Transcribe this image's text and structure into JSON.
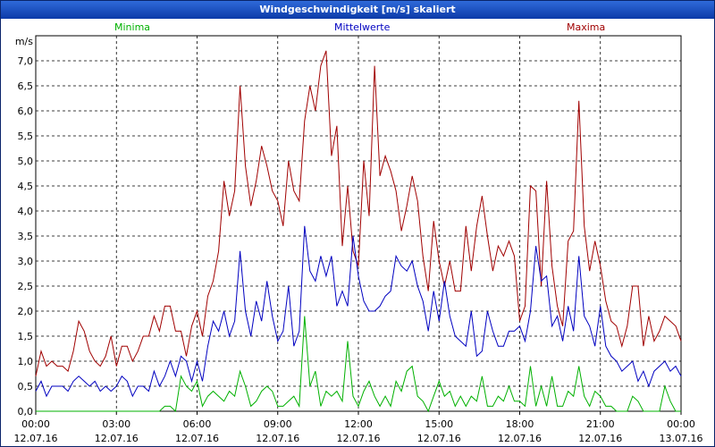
{
  "window": {
    "title": "Windgeschwindigkeit [m/s] skaliert"
  },
  "legend": {
    "min_label": "Minima",
    "mean_label": "Mittelwerte",
    "max_label": "Maxima"
  },
  "chart_data": {
    "type": "line",
    "title": "Windgeschwindigkeit [m/s] skaliert",
    "ylabel": "m/s",
    "ylim": [
      0,
      7.5
    ],
    "yticks": [
      "0,0",
      "0,5",
      "1,0",
      "1,5",
      "2,0",
      "2,5",
      "3,0",
      "3,5",
      "4,0",
      "4,5",
      "5,0",
      "5,5",
      "6,0",
      "6,5",
      "7,0"
    ],
    "xlim_hours": [
      0,
      24
    ],
    "xticks": [
      {
        "time": "00:00",
        "date": "12.07.16"
      },
      {
        "time": "03:00",
        "date": "12.07.16"
      },
      {
        "time": "06:00",
        "date": "12.07.16"
      },
      {
        "time": "09:00",
        "date": "12.07.16"
      },
      {
        "time": "12:00",
        "date": "12.07.16"
      },
      {
        "time": "15:00",
        "date": "12.07.16"
      },
      {
        "time": "18:00",
        "date": "12.07.16"
      },
      {
        "time": "21:00",
        "date": "12.07.16"
      },
      {
        "time": "00:00",
        "date": "13.07.16"
      }
    ],
    "x_hours": [
      0.0,
      0.2,
      0.4,
      0.6,
      0.8,
      1.0,
      1.2,
      1.4,
      1.6,
      1.8,
      2.0,
      2.2,
      2.4,
      2.6,
      2.8,
      3.0,
      3.2,
      3.4,
      3.6,
      3.8,
      4.0,
      4.2,
      4.4,
      4.6,
      4.8,
      5.0,
      5.2,
      5.4,
      5.6,
      5.8,
      6.0,
      6.2,
      6.4,
      6.6,
      6.8,
      7.0,
      7.2,
      7.4,
      7.6,
      7.8,
      8.0,
      8.2,
      8.4,
      8.6,
      8.8,
      9.0,
      9.2,
      9.4,
      9.6,
      9.8,
      10.0,
      10.2,
      10.4,
      10.6,
      10.8,
      11.0,
      11.2,
      11.4,
      11.6,
      11.8,
      12.0,
      12.2,
      12.4,
      12.6,
      12.8,
      13.0,
      13.2,
      13.4,
      13.6,
      13.8,
      14.0,
      14.2,
      14.4,
      14.6,
      14.8,
      15.0,
      15.2,
      15.4,
      15.6,
      15.8,
      16.0,
      16.2,
      16.4,
      16.6,
      16.8,
      17.0,
      17.2,
      17.4,
      17.6,
      17.8,
      18.0,
      18.2,
      18.4,
      18.6,
      18.8,
      19.0,
      19.2,
      19.4,
      19.6,
      19.8,
      20.0,
      20.2,
      20.4,
      20.6,
      20.8,
      21.0,
      21.2,
      21.4,
      21.6,
      21.8,
      22.0,
      22.2,
      22.4,
      22.6,
      22.8,
      23.0,
      23.2,
      23.4,
      23.6,
      23.8,
      24.0
    ],
    "series": [
      {
        "name": "Maxima",
        "color": "#a00000",
        "values": [
          0.7,
          1.2,
          0.9,
          1.0,
          0.9,
          0.9,
          0.8,
          1.2,
          1.8,
          1.6,
          1.2,
          1.0,
          0.9,
          1.1,
          1.5,
          0.9,
          1.3,
          1.3,
          1.0,
          1.2,
          1.5,
          1.5,
          1.9,
          1.6,
          2.1,
          2.1,
          1.6,
          1.6,
          1.1,
          1.7,
          2.0,
          1.5,
          2.3,
          2.6,
          3.2,
          4.6,
          3.9,
          4.4,
          6.5,
          4.9,
          4.1,
          4.6,
          5.3,
          4.9,
          4.4,
          4.2,
          3.7,
          5.0,
          4.4,
          4.2,
          5.8,
          6.5,
          6.0,
          6.9,
          7.2,
          5.1,
          5.7,
          3.3,
          4.5,
          3.2,
          2.9,
          5.0,
          3.9,
          6.9,
          4.7,
          5.1,
          4.8,
          4.4,
          3.6,
          4.1,
          4.7,
          4.2,
          3.1,
          2.4,
          3.8,
          3.0,
          2.5,
          3.0,
          2.4,
          2.4,
          3.7,
          2.8,
          3.7,
          4.3,
          3.5,
          2.8,
          3.3,
          3.1,
          3.4,
          3.1,
          1.8,
          2.1,
          4.5,
          4.4,
          2.5,
          4.6,
          2.9,
          2.1,
          1.7,
          3.4,
          3.6,
          6.2,
          3.7,
          2.8,
          3.4,
          2.9,
          2.2,
          1.8,
          1.7,
          1.3,
          1.7,
          2.5,
          2.5,
          1.3,
          1.9,
          1.4,
          1.6,
          1.9,
          1.8,
          1.7,
          1.4
        ]
      },
      {
        "name": "Mittelwerte",
        "color": "#0000c0",
        "values": [
          0.4,
          0.6,
          0.3,
          0.5,
          0.5,
          0.5,
          0.4,
          0.6,
          0.7,
          0.6,
          0.5,
          0.6,
          0.4,
          0.5,
          0.4,
          0.5,
          0.7,
          0.6,
          0.3,
          0.5,
          0.5,
          0.4,
          0.8,
          0.5,
          0.7,
          1.0,
          0.7,
          1.1,
          1.0,
          0.6,
          1.0,
          0.6,
          1.3,
          1.8,
          1.6,
          2.0,
          1.5,
          1.8,
          3.2,
          2.0,
          1.5,
          2.2,
          1.8,
          2.6,
          1.9,
          1.4,
          1.6,
          2.5,
          1.3,
          1.6,
          3.7,
          2.8,
          2.6,
          3.1,
          2.7,
          3.1,
          2.1,
          2.4,
          2.1,
          3.5,
          2.7,
          2.2,
          2.0,
          2.0,
          2.1,
          2.3,
          2.4,
          3.1,
          2.9,
          2.8,
          3.0,
          2.5,
          2.2,
          1.6,
          2.4,
          1.8,
          2.6,
          1.9,
          1.5,
          1.4,
          1.3,
          2.0,
          1.1,
          1.2,
          2.0,
          1.6,
          1.3,
          1.3,
          1.6,
          1.6,
          1.7,
          1.4,
          2.0,
          3.3,
          2.6,
          2.7,
          1.7,
          1.9,
          1.4,
          2.1,
          1.6,
          3.1,
          1.9,
          1.7,
          1.3,
          2.1,
          1.3,
          1.1,
          1.0,
          0.8,
          0.9,
          1.0,
          0.6,
          0.8,
          0.5,
          0.8,
          0.9,
          1.0,
          0.8,
          0.9,
          0.7
        ]
      },
      {
        "name": "Minima",
        "color": "#00b000",
        "values": [
          0.0,
          0.0,
          0.0,
          0.0,
          0.0,
          0.0,
          0.0,
          0.0,
          0.0,
          0.0,
          0.0,
          0.0,
          0.0,
          0.0,
          0.0,
          0.0,
          0.0,
          0.0,
          0.0,
          0.0,
          0.0,
          0.0,
          0.0,
          0.0,
          0.1,
          0.1,
          0.0,
          0.7,
          0.5,
          0.4,
          0.6,
          0.1,
          0.3,
          0.4,
          0.3,
          0.2,
          0.4,
          0.3,
          0.8,
          0.5,
          0.1,
          0.2,
          0.4,
          0.5,
          0.4,
          0.1,
          0.1,
          0.2,
          0.3,
          0.1,
          1.9,
          0.5,
          0.8,
          0.1,
          0.4,
          0.3,
          0.4,
          0.2,
          1.4,
          0.3,
          0.1,
          0.4,
          0.6,
          0.3,
          0.1,
          0.3,
          0.1,
          0.6,
          0.4,
          0.8,
          0.9,
          0.3,
          0.2,
          0.0,
          0.3,
          0.6,
          0.3,
          0.4,
          0.1,
          0.3,
          0.1,
          0.3,
          0.2,
          0.7,
          0.1,
          0.1,
          0.3,
          0.2,
          0.5,
          0.2,
          0.2,
          0.1,
          0.9,
          0.1,
          0.5,
          0.1,
          0.7,
          0.1,
          0.1,
          0.4,
          0.3,
          0.9,
          0.3,
          0.1,
          0.4,
          0.3,
          0.1,
          0.1,
          0.0,
          0.0,
          0.0,
          0.3,
          0.2,
          0.0,
          0.0,
          0.0,
          0.0,
          0.5,
          0.2,
          0.0,
          0.0
        ]
      }
    ]
  }
}
